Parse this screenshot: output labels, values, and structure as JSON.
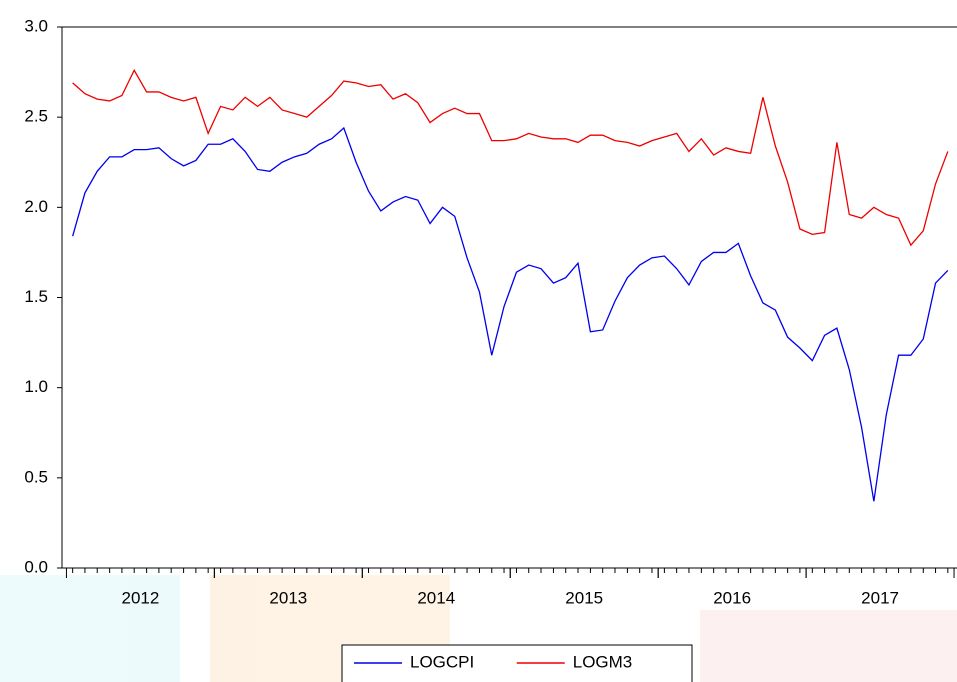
{
  "chart_data": {
    "type": "line",
    "x": [
      2012.042,
      2012.125,
      2012.208,
      2012.292,
      2012.375,
      2012.458,
      2012.542,
      2012.625,
      2012.708,
      2012.792,
      2012.875,
      2012.958,
      2013.042,
      2013.125,
      2013.208,
      2013.292,
      2013.375,
      2013.458,
      2013.542,
      2013.625,
      2013.708,
      2013.792,
      2013.875,
      2013.958,
      2014.042,
      2014.125,
      2014.208,
      2014.292,
      2014.375,
      2014.458,
      2014.542,
      2014.625,
      2014.708,
      2014.792,
      2014.875,
      2014.958,
      2015.042,
      2015.125,
      2015.208,
      2015.292,
      2015.375,
      2015.458,
      2015.542,
      2015.625,
      2015.708,
      2015.792,
      2015.875,
      2015.958,
      2016.042,
      2016.125,
      2016.208,
      2016.292,
      2016.375,
      2016.458,
      2016.542,
      2016.625,
      2016.708,
      2016.792,
      2016.875,
      2016.958,
      2017.042,
      2017.125,
      2017.208,
      2017.292,
      2017.375,
      2017.458,
      2017.542,
      2017.625,
      2017.708,
      2017.792,
      2017.875,
      2017.958
    ],
    "series": [
      {
        "name": "LOGCPI",
        "color": "#0000ee",
        "values": [
          1.84,
          2.08,
          2.2,
          2.28,
          2.28,
          2.32,
          2.32,
          2.33,
          2.27,
          2.23,
          2.26,
          2.35,
          2.35,
          2.38,
          2.31,
          2.21,
          2.2,
          2.25,
          2.28,
          2.3,
          2.35,
          2.38,
          2.44,
          2.25,
          2.09,
          1.98,
          2.03,
          2.06,
          2.04,
          1.91,
          2.0,
          1.95,
          1.72,
          1.53,
          1.18,
          1.45,
          1.64,
          1.68,
          1.66,
          1.58,
          1.61,
          1.69,
          1.31,
          1.32,
          1.48,
          1.61,
          1.68,
          1.72,
          1.73,
          1.66,
          1.57,
          1.7,
          1.75,
          1.75,
          1.8,
          1.62,
          1.47,
          1.43,
          1.28,
          1.22,
          1.15,
          1.29,
          1.33,
          1.1,
          0.78,
          0.37,
          0.85,
          1.18,
          1.18,
          1.27,
          1.58,
          1.65
        ]
      },
      {
        "name": "LOGM3",
        "color": "#ee0000",
        "values": [
          2.69,
          2.63,
          2.6,
          2.59,
          2.62,
          2.76,
          2.64,
          2.64,
          2.61,
          2.59,
          2.61,
          2.41,
          2.56,
          2.54,
          2.61,
          2.56,
          2.61,
          2.54,
          2.52,
          2.5,
          2.56,
          2.62,
          2.7,
          2.69,
          2.67,
          2.68,
          2.6,
          2.63,
          2.58,
          2.47,
          2.52,
          2.55,
          2.52,
          2.52,
          2.37,
          2.37,
          2.38,
          2.41,
          2.39,
          2.38,
          2.38,
          2.36,
          2.4,
          2.4,
          2.37,
          2.36,
          2.34,
          2.37,
          2.39,
          2.41,
          2.31,
          2.38,
          2.29,
          2.33,
          2.31,
          2.3,
          2.61,
          2.34,
          2.14,
          1.88,
          1.85,
          1.86,
          2.36,
          1.96,
          1.94,
          2.0,
          1.96,
          1.94,
          1.79,
          1.87,
          2.13,
          2.31
        ]
      }
    ],
    "xlim": [
      2011.97,
      2018.02
    ],
    "xticks": [
      {
        "value": 2012.5,
        "label": "2012"
      },
      {
        "value": 2013.5,
        "label": "2013"
      },
      {
        "value": 2014.5,
        "label": "2014"
      },
      {
        "value": 2015.5,
        "label": "2015"
      },
      {
        "value": 2016.5,
        "label": "2016"
      },
      {
        "value": 2017.5,
        "label": "2017"
      }
    ],
    "ylim": [
      0,
      3
    ],
    "yticks": [
      {
        "value": 0,
        "label": "0.0"
      },
      {
        "value": 0.5,
        "label": "0.5"
      },
      {
        "value": 1,
        "label": "1.0"
      },
      {
        "value": 1.5,
        "label": "1.5"
      },
      {
        "value": 2,
        "label": "2.0"
      },
      {
        "value": 2.5,
        "label": "2.5"
      },
      {
        "value": 3,
        "label": "3.0"
      }
    ],
    "grid": false,
    "legend": "bottom"
  }
}
